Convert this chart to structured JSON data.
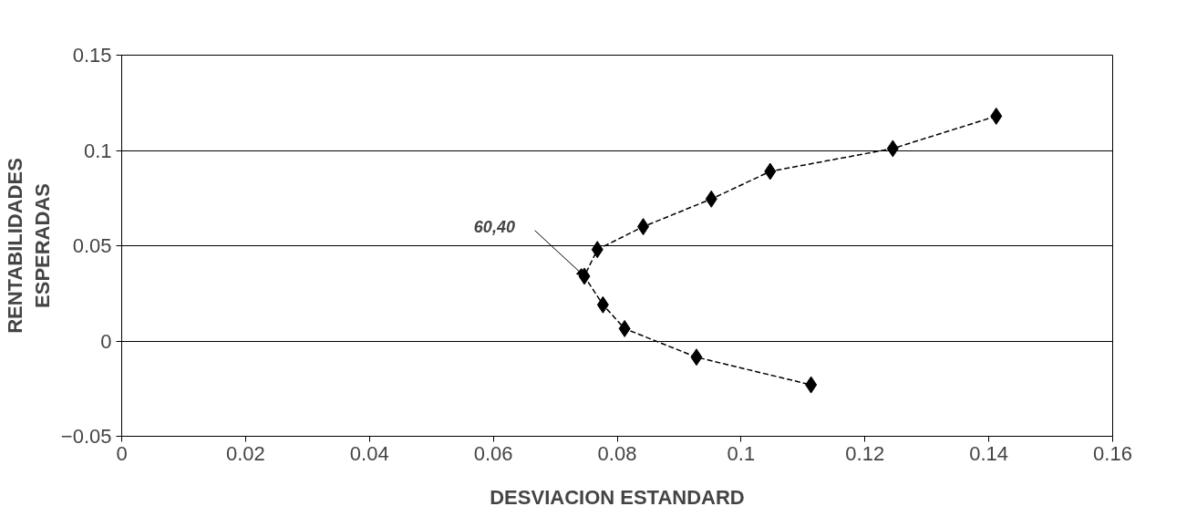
{
  "chart_data": {
    "type": "line",
    "xlabel": "DESVIACION ESTANDARD",
    "ylabel": "RENTABILIDADES\nESPERADAS",
    "x": [
      0.1412,
      0.1245,
      0.1047,
      0.0952,
      0.0842,
      0.0768,
      0.0747,
      0.0777,
      0.0812,
      0.0928,
      0.1113
    ],
    "series": [
      {
        "color": "#000000",
        "values": [
          0.118,
          0.101,
          0.089,
          0.0745,
          0.06,
          0.048,
          0.034,
          0.019,
          0.0065,
          -0.0085,
          -0.023
        ]
      }
    ],
    "xlim": [
      0,
      0.16
    ],
    "xticks": [
      0,
      0.02,
      0.04,
      0.06,
      0.08,
      0.1,
      0.12,
      0.14,
      0.16
    ],
    "ylim": [
      -0.05,
      0.15
    ],
    "yticks": [
      -0.05,
      0,
      0.05,
      0.1,
      0.15
    ],
    "grid": "y",
    "marker": "diamond",
    "line_style": "dashed",
    "annotations": [
      {
        "text": "60,40",
        "x": 0.0747,
        "y": 0.034
      }
    ]
  }
}
